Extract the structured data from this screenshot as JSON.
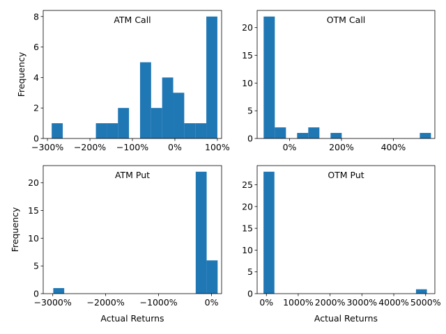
{
  "figure": {
    "ylabel": "Frequency",
    "xlabel": "Actual Returns",
    "bar_color": "#1f77b4"
  },
  "chart_data": [
    {
      "type": "bar",
      "title": "ATM Call",
      "ylabel": "Frequency",
      "xlabel": "",
      "xlim": [
        -3.1,
        1.1
      ],
      "ylim": [
        0,
        8.4
      ],
      "xticks": [
        -3,
        -2,
        -1,
        0,
        1
      ],
      "xtick_labels": [
        "−300%",
        "−200%",
        "−100%",
        "0%",
        "100%"
      ],
      "yticks": [
        0,
        2,
        4,
        6,
        8
      ],
      "ytick_labels": [
        "0",
        "2",
        "4",
        "6",
        "8"
      ],
      "bins": {
        "start": -2.9,
        "width": 0.26
      },
      "values": [
        1,
        0,
        0,
        0,
        1,
        1,
        2,
        0,
        5,
        2,
        4,
        3,
        1,
        1,
        8
      ]
    },
    {
      "type": "bar",
      "title": "OTM Call",
      "ylabel": "",
      "xlabel": "",
      "xlim": [
        -1.25,
        5.6
      ],
      "ylim": [
        0,
        23.1
      ],
      "xticks": [
        0,
        2,
        4
      ],
      "xtick_labels": [
        "0%",
        "200%",
        "400%"
      ],
      "yticks": [
        0,
        5,
        10,
        15,
        20
      ],
      "ytick_labels": [
        "0",
        "5",
        "10",
        "15",
        "20"
      ],
      "bins": {
        "start": -1.0,
        "width": 0.43
      },
      "values": [
        22,
        2,
        0,
        1,
        2,
        0,
        1,
        0,
        0,
        0,
        0,
        0,
        0,
        0,
        1
      ]
    },
    {
      "type": "bar",
      "title": "ATM Put",
      "ylabel": "Frequency",
      "xlabel": "Actual Returns",
      "xlim": [
        -31.8,
        1.9
      ],
      "ylim": [
        0,
        23.1
      ],
      "xticks": [
        -30,
        -20,
        -10,
        0
      ],
      "xtick_labels": [
        "−3000%",
        "−2000%",
        "−1000%",
        "0%"
      ],
      "yticks": [
        0,
        5,
        10,
        15,
        20
      ],
      "ytick_labels": [
        "0",
        "5",
        "10",
        "15",
        "20"
      ],
      "bins": {
        "start": -29.9,
        "width": 2.07
      },
      "values": [
        1,
        0,
        0,
        0,
        0,
        0,
        0,
        0,
        0,
        0,
        0,
        0,
        0,
        22,
        6
      ]
    },
    {
      "type": "bar",
      "title": "OTM Put",
      "ylabel": "",
      "xlabel": "Actual Returns",
      "xlim": [
        -2.9,
        52.9
      ],
      "ylim": [
        0,
        29.4
      ],
      "xticks": [
        0,
        10,
        20,
        30,
        40,
        50
      ],
      "xtick_labels": [
        "0%",
        "1000%",
        "2000%",
        "3000%",
        "4000%",
        "5000%"
      ],
      "yticks": [
        0,
        5,
        10,
        15,
        20,
        25
      ],
      "ytick_labels": [
        "0",
        "5",
        "10",
        "15",
        "20",
        "25"
      ],
      "bins": {
        "start": -0.9,
        "width": 3.42
      },
      "values": [
        28,
        0,
        0,
        0,
        0,
        0,
        0,
        0,
        0,
        0,
        0,
        0,
        0,
        0,
        1
      ]
    }
  ]
}
